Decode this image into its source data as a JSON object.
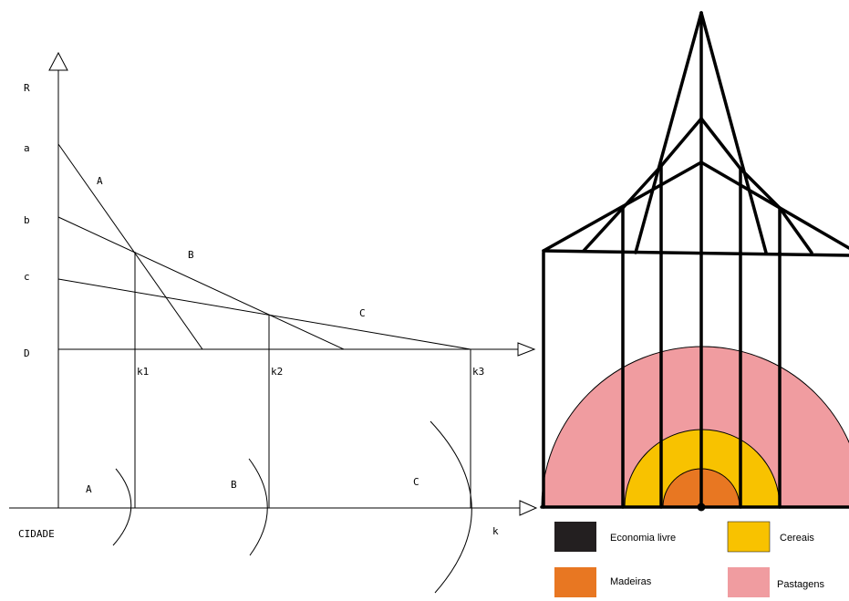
{
  "left_diagram": {
    "axis_y_label": "R",
    "axis_x_label": "k",
    "origin_label": "CIDADE",
    "intercept_labels": [
      "a",
      "b",
      "c",
      "D"
    ],
    "line_labels": [
      "A",
      "B",
      "C"
    ],
    "distance_labels": [
      "k1",
      "k2",
      "k3"
    ],
    "ring_labels": [
      "A",
      "B",
      "C"
    ]
  },
  "legend": {
    "items": [
      {
        "label": "Economia livre",
        "color": "#231f20"
      },
      {
        "label": "Cereais",
        "color": "#f8c200"
      },
      {
        "label": "Madeiras",
        "color": "#e87722"
      },
      {
        "label": "Pastagens",
        "color": "#f09ca0"
      }
    ]
  },
  "colors": {
    "economia_livre": "#231f20",
    "madeiras": "#e87722",
    "cereais": "#f8c200",
    "pastagens": "#f09ca0",
    "lines": "#000000"
  }
}
